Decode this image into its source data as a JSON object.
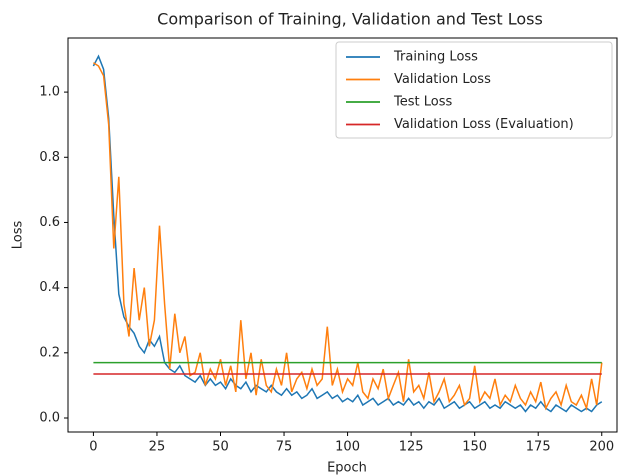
{
  "chart_data": {
    "type": "line",
    "title": "Comparison of Training, Validation and Test Loss",
    "xlabel": "Epoch",
    "ylabel": "Loss",
    "xlim": [
      -10,
      206
    ],
    "ylim": [
      -0.043,
      1.166
    ],
    "xticks": [
      0,
      25,
      50,
      75,
      100,
      125,
      150,
      175,
      200
    ],
    "yticks": [
      {
        "value": 0,
        "label": "0.0"
      },
      0.2,
      0.4,
      0.6,
      0.8,
      {
        "value": 1,
        "label": "1.0"
      }
    ],
    "legend": "upper right",
    "series": [
      {
        "name": "Training Loss",
        "color": "#1f77b4",
        "x": [
          0,
          2,
          4,
          6,
          8,
          10,
          12,
          14,
          16,
          18,
          20,
          22,
          24,
          26,
          28,
          30,
          32,
          34,
          36,
          38,
          40,
          42,
          44,
          46,
          48,
          50,
          52,
          54,
          56,
          58,
          60,
          62,
          64,
          66,
          68,
          70,
          72,
          74,
          76,
          78,
          80,
          82,
          84,
          86,
          88,
          90,
          92,
          94,
          96,
          98,
          100,
          102,
          104,
          106,
          108,
          110,
          112,
          114,
          116,
          118,
          120,
          122,
          124,
          126,
          128,
          130,
          132,
          134,
          136,
          138,
          140,
          142,
          144,
          146,
          148,
          150,
          152,
          154,
          156,
          158,
          160,
          162,
          164,
          166,
          168,
          170,
          172,
          174,
          176,
          178,
          180,
          182,
          184,
          186,
          188,
          190,
          192,
          194,
          196,
          198,
          200
        ],
        "values": [
          1.08,
          1.11,
          1.07,
          0.92,
          0.62,
          0.38,
          0.31,
          0.28,
          0.26,
          0.22,
          0.2,
          0.24,
          0.22,
          0.25,
          0.17,
          0.15,
          0.14,
          0.16,
          0.13,
          0.12,
          0.11,
          0.13,
          0.1,
          0.12,
          0.1,
          0.11,
          0.09,
          0.12,
          0.1,
          0.09,
          0.11,
          0.08,
          0.1,
          0.09,
          0.08,
          0.1,
          0.08,
          0.07,
          0.09,
          0.07,
          0.08,
          0.06,
          0.07,
          0.09,
          0.06,
          0.07,
          0.08,
          0.06,
          0.07,
          0.05,
          0.06,
          0.05,
          0.07,
          0.04,
          0.05,
          0.06,
          0.04,
          0.05,
          0.06,
          0.04,
          0.05,
          0.04,
          0.06,
          0.04,
          0.05,
          0.03,
          0.05,
          0.04,
          0.06,
          0.03,
          0.04,
          0.05,
          0.03,
          0.04,
          0.05,
          0.03,
          0.04,
          0.05,
          0.03,
          0.04,
          0.03,
          0.05,
          0.04,
          0.03,
          0.04,
          0.02,
          0.04,
          0.03,
          0.05,
          0.03,
          0.02,
          0.04,
          0.03,
          0.02,
          0.04,
          0.03,
          0.02,
          0.03,
          0.02,
          0.04,
          0.05
        ]
      },
      {
        "name": "Validation Loss",
        "color": "#ff7f0e",
        "x": [
          0,
          2,
          4,
          6,
          8,
          10,
          12,
          14,
          16,
          18,
          20,
          22,
          24,
          26,
          28,
          30,
          32,
          34,
          36,
          38,
          40,
          42,
          44,
          46,
          48,
          50,
          52,
          54,
          56,
          58,
          60,
          62,
          64,
          66,
          68,
          70,
          72,
          74,
          76,
          78,
          80,
          82,
          84,
          86,
          88,
          90,
          92,
          94,
          96,
          98,
          100,
          102,
          104,
          106,
          108,
          110,
          112,
          114,
          116,
          118,
          120,
          122,
          124,
          126,
          128,
          130,
          132,
          134,
          136,
          138,
          140,
          142,
          144,
          146,
          148,
          150,
          152,
          154,
          156,
          158,
          160,
          162,
          164,
          166,
          168,
          170,
          172,
          174,
          176,
          178,
          180,
          182,
          184,
          186,
          188,
          190,
          192,
          194,
          196,
          198,
          200
        ],
        "values": [
          1.09,
          1.08,
          1.05,
          0.9,
          0.52,
          0.74,
          0.35,
          0.25,
          0.46,
          0.3,
          0.4,
          0.22,
          0.3,
          0.59,
          0.35,
          0.15,
          0.32,
          0.2,
          0.25,
          0.13,
          0.14,
          0.2,
          0.1,
          0.15,
          0.12,
          0.18,
          0.1,
          0.16,
          0.08,
          0.3,
          0.12,
          0.2,
          0.07,
          0.18,
          0.1,
          0.08,
          0.15,
          0.1,
          0.2,
          0.08,
          0.12,
          0.14,
          0.09,
          0.15,
          0.1,
          0.12,
          0.28,
          0.1,
          0.15,
          0.08,
          0.12,
          0.1,
          0.17,
          0.08,
          0.06,
          0.12,
          0.09,
          0.15,
          0.06,
          0.1,
          0.14,
          0.05,
          0.18,
          0.08,
          0.1,
          0.06,
          0.14,
          0.05,
          0.08,
          0.12,
          0.05,
          0.07,
          0.1,
          0.04,
          0.06,
          0.16,
          0.05,
          0.08,
          0.06,
          0.12,
          0.04,
          0.07,
          0.05,
          0.1,
          0.06,
          0.04,
          0.08,
          0.05,
          0.11,
          0.03,
          0.06,
          0.08,
          0.04,
          0.1,
          0.05,
          0.04,
          0.07,
          0.03,
          0.12,
          0.04,
          0.17
        ]
      },
      {
        "name": "Test Loss",
        "color": "#2ca02c",
        "x": [
          0,
          200
        ],
        "values": [
          0.17,
          0.17
        ]
      },
      {
        "name": "Validation Loss (Evaluation)",
        "color": "#d62728",
        "x": [
          0,
          200
        ],
        "values": [
          0.135,
          0.135
        ]
      }
    ]
  }
}
